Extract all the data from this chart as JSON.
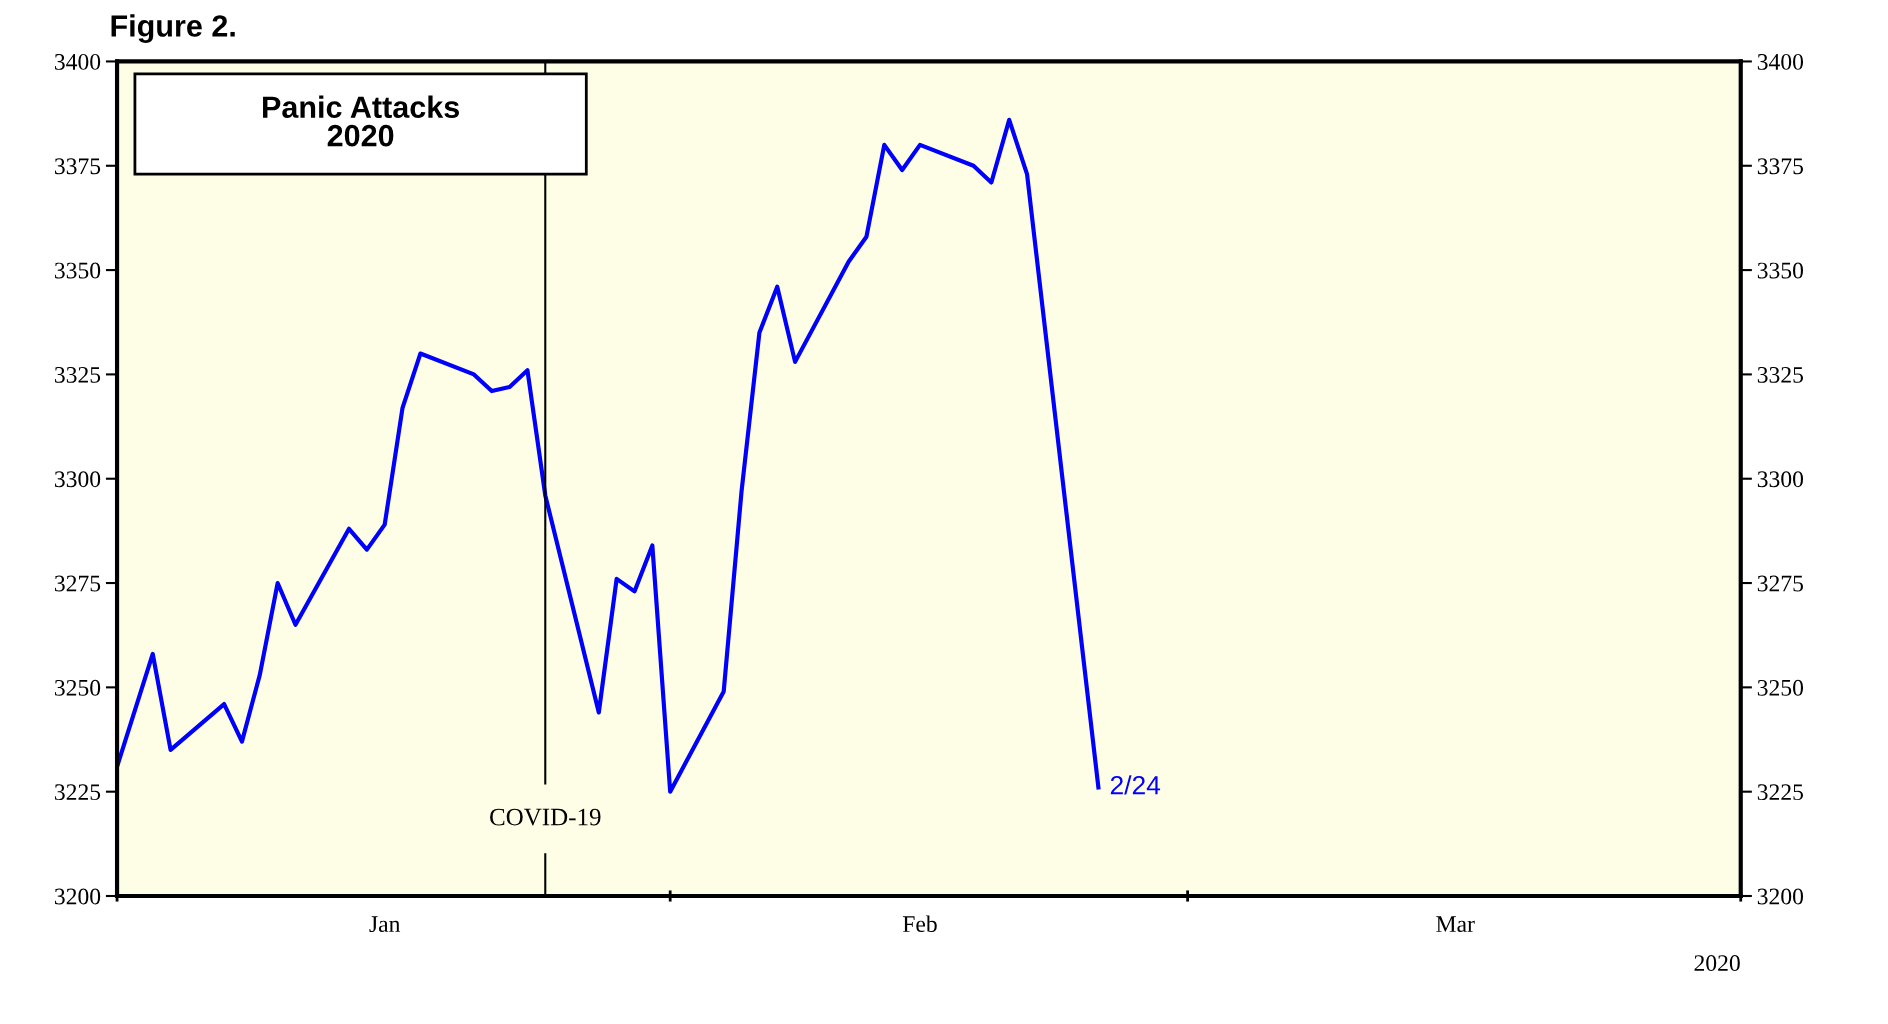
{
  "chart_data": {
    "type": "line",
    "title": "Figure 2.",
    "subtitle": "Panic Attacks\n2020",
    "x": [
      "2020-01-01",
      "2020-01-03",
      "2020-01-04",
      "2020-01-07",
      "2020-01-08",
      "2020-01-09",
      "2020-01-10",
      "2020-01-11",
      "2020-01-14",
      "2020-01-15",
      "2020-01-16",
      "2020-01-17",
      "2020-01-18",
      "2020-01-21",
      "2020-01-22",
      "2020-01-23",
      "2020-01-24",
      "2020-01-25",
      "2020-01-28",
      "2020-01-29",
      "2020-01-30",
      "2020-01-31",
      "2020-02-01",
      "2020-02-04",
      "2020-02-05",
      "2020-02-06",
      "2020-02-07",
      "2020-02-08",
      "2020-02-11",
      "2020-02-12",
      "2020-02-13",
      "2020-02-14",
      "2020-02-15",
      "2020-02-18",
      "2020-02-19",
      "2020-02-20",
      "2020-02-21",
      "2020-02-25"
    ],
    "series": [
      {
        "color": "#0000ff",
        "values": [
          3231,
          3258,
          3235,
          3246,
          3237,
          3253,
          3275,
          3265,
          3288,
          3283,
          3289,
          3317,
          3330,
          3325,
          3321,
          3322,
          3326,
          3296,
          3244,
          3276,
          3273,
          3284,
          3225,
          3249,
          3297,
          3335,
          3346,
          3328,
          3352,
          3358,
          3380,
          3374,
          3380,
          3375,
          3371,
          3386,
          3373,
          3226
        ]
      }
    ],
    "xlim": [
      "2020-01-01",
      "2020-04-01"
    ],
    "xticks": [
      {
        "value": "2020-01-01",
        "label": null
      },
      {
        "value": "2020-01-16",
        "label": "Jan"
      },
      {
        "value": "2020-02-01",
        "label": null
      },
      {
        "value": "2020-02-15",
        "label": "Feb"
      },
      {
        "value": "2020-03-01",
        "label": null
      },
      {
        "value": "2020-03-16",
        "label": "Mar"
      },
      {
        "value": "2020-04-01",
        "label": null
      }
    ],
    "ylim": [
      3200,
      3400
    ],
    "yticks": [
      3200,
      3225,
      3250,
      3275,
      3300,
      3325,
      3350,
      3375,
      3400
    ],
    "y2lim": [
      3200,
      3400
    ],
    "y2ticks": [
      3200,
      3225,
      3250,
      3275,
      3300,
      3325,
      3350,
      3375,
      3400
    ],
    "ref_lines": [
      {
        "axis": "x",
        "value": "2020-01-25",
        "label": "COVID-19",
        "color": "#000000"
      }
    ],
    "annotations": [
      {
        "text": "2/24",
        "x": "2020-02-25",
        "y": 3226
      },
      "2020"
    ],
    "grid": false,
    "legend": false,
    "marker": "none",
    "line_style": "solid"
  }
}
